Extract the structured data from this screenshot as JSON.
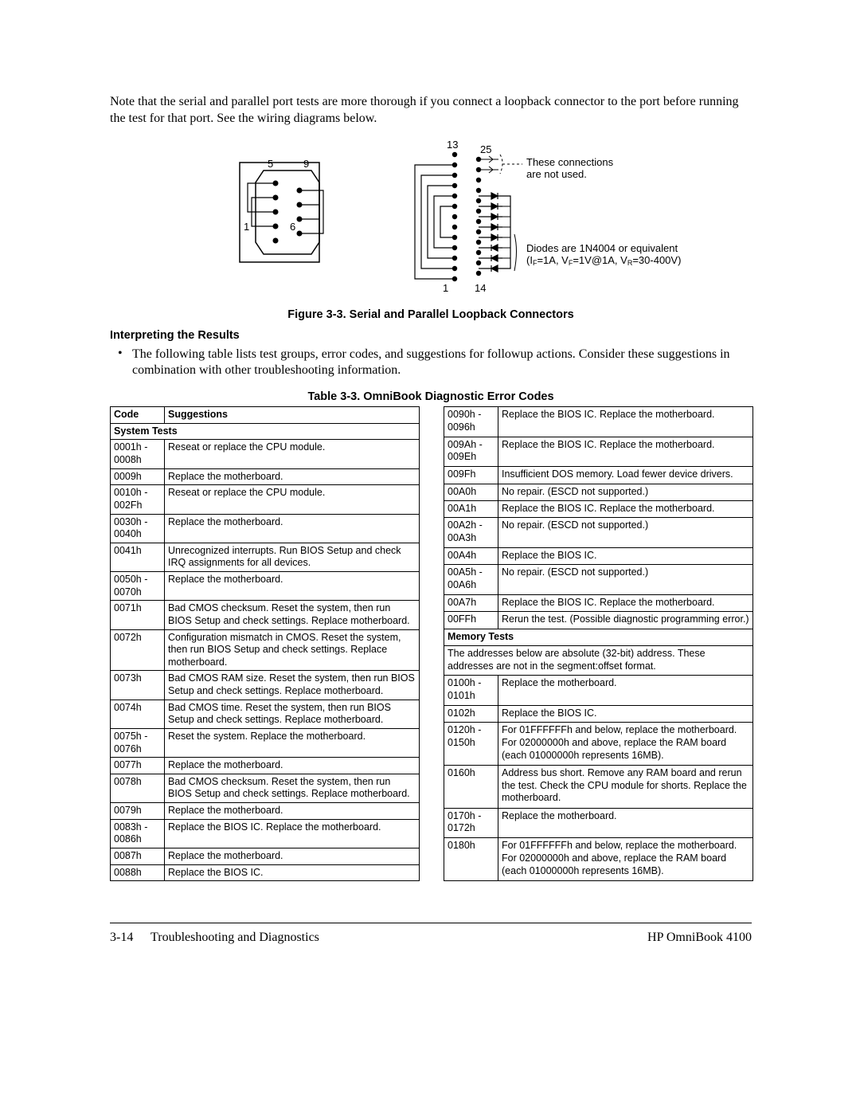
{
  "intro": "Note that the serial and parallel port tests are more thorough if you connect a loopback connector to the port before running the test for that port. See the wiring diagrams below.",
  "figure": {
    "caption": "Figure 3-3. Serial and Parallel Loopback Connectors",
    "serial": {
      "labels": {
        "p5": "5",
        "p9": "9",
        "p1": "1",
        "p6": "6"
      }
    },
    "parallel": {
      "labels": {
        "p13": "13",
        "p25": "25",
        "p1": "1",
        "p14": "14"
      },
      "note1": "These connections are not used.",
      "note2a": "Diodes are 1N4004 or equivalent",
      "note2b": "(IF=1A, VF=1V@1A, VR=30-400V)"
    }
  },
  "heading_interpret": "Interpreting the Results",
  "bullet": "The following table lists test groups, error codes, and suggestions for followup actions. Consider these suggestions in combination with other troubleshooting information.",
  "table_caption": "Table 3-3. OmniBook Diagnostic Error Codes",
  "headers": {
    "code": "Code",
    "sugg": "Suggestions"
  },
  "sections": {
    "system": "System Tests",
    "memory": "Memory Tests"
  },
  "memory_note": "The addresses below are absolute (32-bit) address. These addresses are not in the segment:offset format.",
  "left_rows": [
    {
      "code": "0001h - 0008h",
      "sugg": "Reseat or replace the CPU module."
    },
    {
      "code": "0009h",
      "sugg": "Replace the motherboard."
    },
    {
      "code": "0010h - 002Fh",
      "sugg": "Reseat or replace the CPU module."
    },
    {
      "code": "0030h - 0040h",
      "sugg": "Replace the motherboard."
    },
    {
      "code": "0041h",
      "sugg": "Unrecognized interrupts. Run BIOS Setup and check IRQ assignments for all devices."
    },
    {
      "code": "0050h - 0070h",
      "sugg": "Replace the motherboard."
    },
    {
      "code": "0071h",
      "sugg": "Bad CMOS checksum. Reset the system, then run BIOS Setup and check settings. Replace motherboard."
    },
    {
      "code": "0072h",
      "sugg": "Configuration mismatch in CMOS. Reset the system, then run BIOS Setup and check settings. Replace motherboard."
    },
    {
      "code": "0073h",
      "sugg": "Bad CMOS RAM size. Reset the system, then run BIOS Setup and check settings. Replace motherboard."
    },
    {
      "code": "0074h",
      "sugg": "Bad CMOS time. Reset the system, then run BIOS Setup and check settings. Replace motherboard."
    },
    {
      "code": "0075h - 0076h",
      "sugg": "Reset the system. Replace the motherboard."
    },
    {
      "code": "0077h",
      "sugg": "Replace the motherboard."
    },
    {
      "code": "0078h",
      "sugg": "Bad CMOS checksum. Reset the system, then run BIOS Setup and check settings. Replace motherboard."
    },
    {
      "code": "0079h",
      "sugg": "Replace the motherboard."
    },
    {
      "code": "0083h - 0086h",
      "sugg": "Replace the BIOS IC. Replace the motherboard."
    },
    {
      "code": "0087h",
      "sugg": "Replace the motherboard."
    },
    {
      "code": "0088h",
      "sugg": "Replace the BIOS IC."
    }
  ],
  "right_rows_sys": [
    {
      "code": "0090h - 0096h",
      "sugg": "Replace the BIOS IC. Replace the motherboard."
    },
    {
      "code": "009Ah - 009Eh",
      "sugg": "Replace the BIOS IC. Replace the motherboard."
    },
    {
      "code": "009Fh",
      "sugg": "Insufficient DOS memory. Load fewer device drivers."
    },
    {
      "code": "00A0h",
      "sugg": "No repair. (ESCD not supported.)"
    },
    {
      "code": "00A1h",
      "sugg": "Replace the BIOS IC. Replace the motherboard."
    },
    {
      "code": "00A2h - 00A3h",
      "sugg": "No repair. (ESCD not supported.)"
    },
    {
      "code": "00A4h",
      "sugg": "Replace the BIOS IC."
    },
    {
      "code": "00A5h - 00A6h",
      "sugg": "No repair. (ESCD not supported.)"
    },
    {
      "code": "00A7h",
      "sugg": "Replace the BIOS IC. Replace the motherboard."
    },
    {
      "code": "00FFh",
      "sugg": "Rerun the test. (Possible diagnostic programming error.)"
    }
  ],
  "right_rows_mem": [
    {
      "code": "0100h - 0101h",
      "sugg": "Replace the motherboard."
    },
    {
      "code": "0102h",
      "sugg": "Replace the BIOS IC."
    },
    {
      "code": "0120h - 0150h",
      "sugg": "For 01FFFFFFh and below, replace the motherboard. For 02000000h and above, replace the RAM board (each 01000000h represents 16MB)."
    },
    {
      "code": "0160h",
      "sugg": "Address bus short. Remove any RAM board and rerun the test. Check the CPU module for shorts. Replace the motherboard."
    },
    {
      "code": "0170h - 0172h",
      "sugg": "Replace the motherboard."
    },
    {
      "code": "0180h",
      "sugg": "For 01FFFFFFh and below, replace the motherboard. For 02000000h and above, replace the RAM board (each 01000000h represents 16MB)."
    }
  ],
  "footer": {
    "page": "3-14",
    "section": "Troubleshooting and Diagnostics",
    "product": "HP OmniBook 4100"
  }
}
